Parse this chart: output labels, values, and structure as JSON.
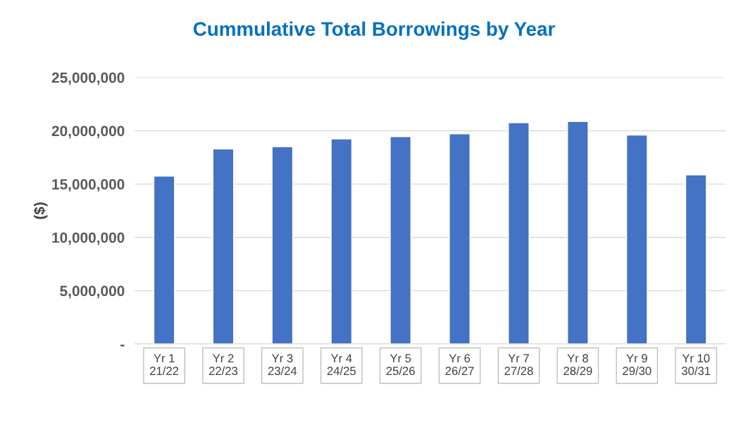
{
  "chart_data": {
    "type": "bar",
    "title": "Cummulative Total Borrowings by Year",
    "ylabel": "($)",
    "categories": [
      "Yr 1\n21/22",
      "Yr 2\n22/23",
      "Yr 3\n23/24",
      "Yr 4\n24/25",
      "Yr 5\n25/26",
      "Yr 6\n26/27",
      "Yr 7\n27/28",
      "Yr 8\n28/29",
      "Yr 9\n29/30",
      "Yr 10\n30/31"
    ],
    "values": [
      15750000,
      18290000,
      18510000,
      19240000,
      19450000,
      19710000,
      20760000,
      20870000,
      19590000,
      15860000
    ],
    "color": "#4472c4",
    "ylim": [
      0,
      25000000
    ],
    "yticks": [
      {
        "value": 0,
        "label": "-"
      },
      {
        "value": 5000000,
        "label": "5,000,000"
      },
      {
        "value": 10000000,
        "label": "10,000,000"
      },
      {
        "value": 15000000,
        "label": "15,000,000"
      },
      {
        "value": 20000000,
        "label": "20,000,000"
      },
      {
        "value": 25000000,
        "label": "25,000,000"
      }
    ],
    "grid": "y",
    "legend": false
  }
}
